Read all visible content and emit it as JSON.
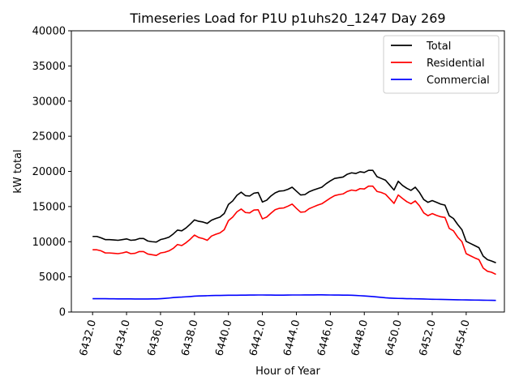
{
  "chart_data": {
    "type": "line",
    "title": "Timeseries Load for P1U p1uhs20_1247  Day 269",
    "xlabel": "Hour of Year",
    "ylabel": "kW total",
    "xlim": [
      6430.75,
      6456.25
    ],
    "ylim": [
      0,
      40000
    ],
    "xticks": [
      6432,
      6434,
      6436,
      6438,
      6440,
      6442,
      6444,
      6446,
      6448,
      6450,
      6452,
      6454
    ],
    "xtick_labels": [
      "6432.0",
      "6434.0",
      "6436.0",
      "6438.0",
      "6440.0",
      "6442.0",
      "6444.0",
      "6446.0",
      "6448.0",
      "6450.0",
      "6452.0",
      "6454.0"
    ],
    "yticks": [
      0,
      5000,
      10000,
      15000,
      20000,
      25000,
      30000,
      35000,
      40000
    ],
    "ytick_labels": [
      "0",
      "5000",
      "10000",
      "15000",
      "20000",
      "25000",
      "30000",
      "35000",
      "40000"
    ],
    "grid": false,
    "legend_position": "top-right",
    "x_start": 6432,
    "x_step": 0.25,
    "series": [
      {
        "name": "Total",
        "color": "#000000",
        "values": [
          10750,
          10750,
          10550,
          10300,
          10300,
          10250,
          10200,
          10300,
          10400,
          10200,
          10250,
          10450,
          10450,
          10100,
          10000,
          9950,
          10300,
          10450,
          10650,
          11100,
          11650,
          11550,
          11950,
          12500,
          13100,
          12900,
          12800,
          12600,
          13050,
          13300,
          13500,
          14000,
          15300,
          15800,
          16600,
          17050,
          16550,
          16500,
          16900,
          17000,
          15650,
          15900,
          16500,
          16950,
          17200,
          17250,
          17450,
          17750,
          17200,
          16650,
          16700,
          17100,
          17350,
          17550,
          17750,
          18250,
          18650,
          19000,
          19100,
          19200,
          19600,
          19800,
          19700,
          19950,
          19850,
          20150,
          20150,
          19250,
          19000,
          18750,
          18050,
          17350,
          18600,
          18000,
          17600,
          17300,
          17750,
          17000,
          16000,
          15600,
          15850,
          15600,
          15350,
          15200,
          13700,
          13300,
          12450,
          11700,
          10050,
          9750,
          9450,
          9150,
          7950,
          7450,
          7250,
          7000
        ]
      },
      {
        "name": "Residential",
        "color": "#ff0000",
        "values": [
          8850,
          8850,
          8700,
          8400,
          8400,
          8350,
          8300,
          8400,
          8550,
          8300,
          8350,
          8600,
          8600,
          8250,
          8150,
          8050,
          8400,
          8500,
          8700,
          9050,
          9600,
          9450,
          9850,
          10350,
          10950,
          10600,
          10450,
          10200,
          10800,
          11050,
          11250,
          11700,
          13000,
          13500,
          14250,
          14650,
          14150,
          14100,
          14500,
          14550,
          13250,
          13500,
          14050,
          14550,
          14750,
          14800,
          15050,
          15350,
          14750,
          14200,
          14250,
          14700,
          14950,
          15200,
          15400,
          15800,
          16200,
          16550,
          16700,
          16800,
          17150,
          17350,
          17250,
          17550,
          17500,
          17900,
          17900,
          17150,
          17000,
          16750,
          16100,
          15450,
          16650,
          16150,
          15700,
          15400,
          15800,
          15100,
          14100,
          13700,
          14000,
          13750,
          13550,
          13450,
          11900,
          11550,
          10650,
          10000,
          8300,
          8000,
          7700,
          7450,
          6250,
          5800,
          5650,
          5350
        ]
      },
      {
        "name": "Commercial",
        "color": "#0000ff",
        "values": [
          1900,
          1900,
          1900,
          1900,
          1880,
          1880,
          1870,
          1870,
          1860,
          1860,
          1850,
          1850,
          1850,
          1850,
          1860,
          1870,
          1900,
          1940,
          1990,
          2050,
          2100,
          2120,
          2160,
          2200,
          2250,
          2280,
          2300,
          2320,
          2340,
          2350,
          2360,
          2370,
          2380,
          2380,
          2390,
          2400,
          2400,
          2410,
          2410,
          2420,
          2420,
          2410,
          2410,
          2400,
          2400,
          2400,
          2410,
          2420,
          2420,
          2420,
          2430,
          2430,
          2430,
          2440,
          2440,
          2430,
          2420,
          2410,
          2410,
          2400,
          2400,
          2380,
          2350,
          2320,
          2280,
          2240,
          2200,
          2140,
          2080,
          2020,
          1980,
          1950,
          1930,
          1920,
          1900,
          1890,
          1880,
          1870,
          1850,
          1830,
          1810,
          1800,
          1790,
          1780,
          1760,
          1750,
          1740,
          1730,
          1720,
          1710,
          1700,
          1690,
          1680,
          1670,
          1660,
          1650
        ]
      }
    ]
  }
}
